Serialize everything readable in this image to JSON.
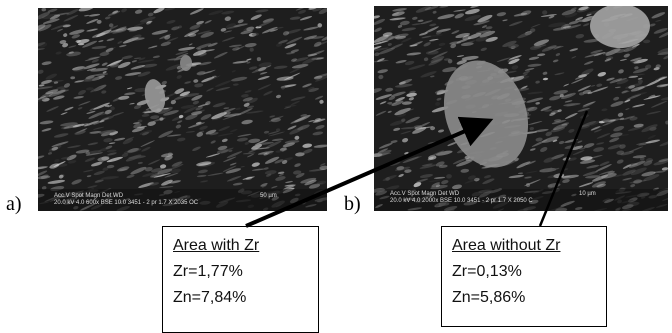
{
  "panels": [
    {
      "label": "a)",
      "scalebar": {
        "header": "Acc.V  Spot Magn   Det  WD",
        "values": "20.0 kV 4.0   600x   BSE 10.0  3451 - 2 pr 1.7 X 2035 OC",
        "scale": "50 µm"
      }
    },
    {
      "label": "b)",
      "scalebar": {
        "header": "Acc.V  Spot Magn   Det  WD",
        "values": "20.0 kV 4.0   2000x   BSE 10.0  3451 - 2 pr 1.7 X  2050 C",
        "scale": "10 µm"
      }
    }
  ],
  "callouts": [
    {
      "title": "Area with  Zr",
      "lines": [
        "Zr=1,77%",
        "Zn=7,84%"
      ]
    },
    {
      "title": "Area without Zr",
      "lines": [
        "Zr=0,13%",
        "Zn=5,86%"
      ]
    }
  ]
}
